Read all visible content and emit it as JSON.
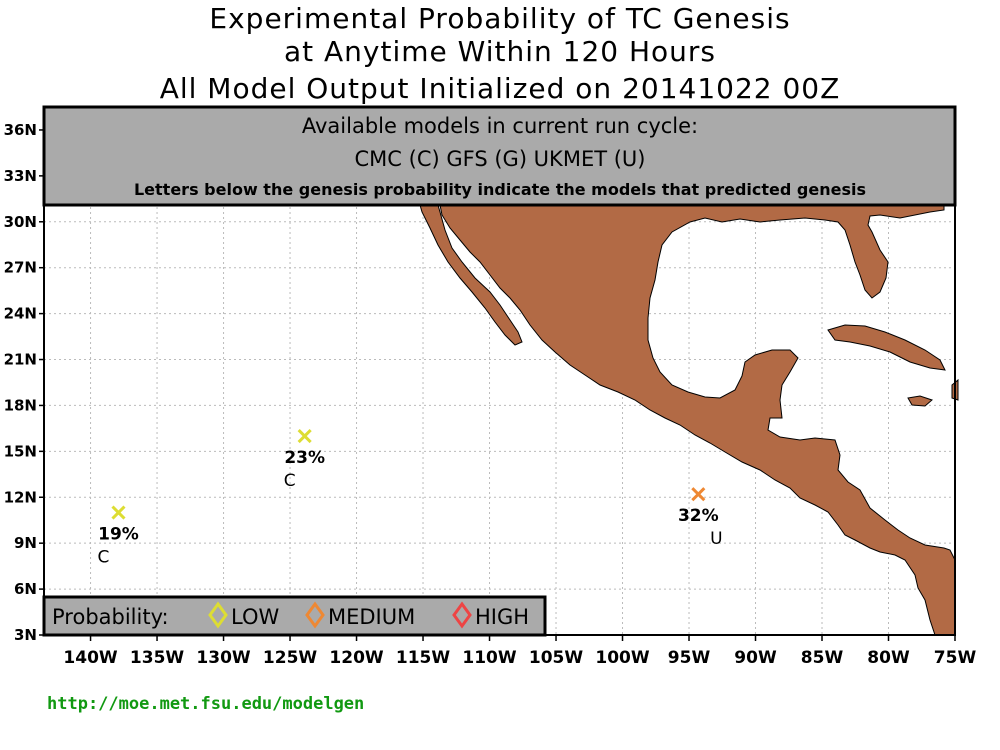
{
  "title": {
    "line1": "Experimental Probability of TC Genesis",
    "line2": "at Anytime Within 120 Hours",
    "line3": "All Model Output Initialized on 20141022 00Z"
  },
  "info_box": {
    "heading": "Available models in current run cycle:",
    "models": "CMC (C)  GFS (G)  UKMET (U)",
    "note": "Letters below the genesis probability indicate the models that predicted genesis"
  },
  "legend": {
    "title": "Probability:",
    "items": [
      {
        "label": "LOW",
        "color": "#dddd33"
      },
      {
        "label": "MEDIUM",
        "color": "#ee8833"
      },
      {
        "label": "HIGH",
        "color": "#ee4444"
      }
    ]
  },
  "axes": {
    "x_ticks": [
      "140W",
      "135W",
      "130W",
      "125W",
      "120W",
      "115W",
      "110W",
      "105W",
      "100W",
      "95W",
      "90W",
      "85W",
      "80W",
      "75W"
    ],
    "x_values": [
      -140,
      -135,
      -130,
      -125,
      -120,
      -115,
      -110,
      -105,
      -100,
      -95,
      -90,
      -85,
      -80,
      -75
    ],
    "y_ticks": [
      "3N",
      "6N",
      "9N",
      "12N",
      "15N",
      "18N",
      "21N",
      "24N",
      "27N",
      "30N",
      "33N",
      "36N"
    ],
    "y_values": [
      3,
      6,
      9,
      12,
      15,
      18,
      21,
      24,
      27,
      30,
      33,
      36
    ],
    "lon_range": [
      -143.5,
      -75
    ],
    "lat_range": [
      3,
      37.5
    ],
    "grid": true
  },
  "genesis_points": [
    {
      "lon": -137.9,
      "lat": 11.0,
      "probability": "19%",
      "models": "C",
      "level": "LOW",
      "color": "#dddd33"
    },
    {
      "lon": -123.9,
      "lat": 16.0,
      "probability": "23%",
      "models": "C",
      "level": "LOW",
      "color": "#dddd33"
    },
    {
      "lon": -94.3,
      "lat": 12.2,
      "probability": "32%",
      "models": "U",
      "level": "MEDIUM",
      "color": "#ee8833"
    }
  ],
  "colors": {
    "land": "#b26a45",
    "frame": "#000000",
    "box_fill": "#aaaaaa",
    "url": "#119911"
  },
  "footer": {
    "url": "http://moe.met.fsu.edu/modelgen"
  }
}
